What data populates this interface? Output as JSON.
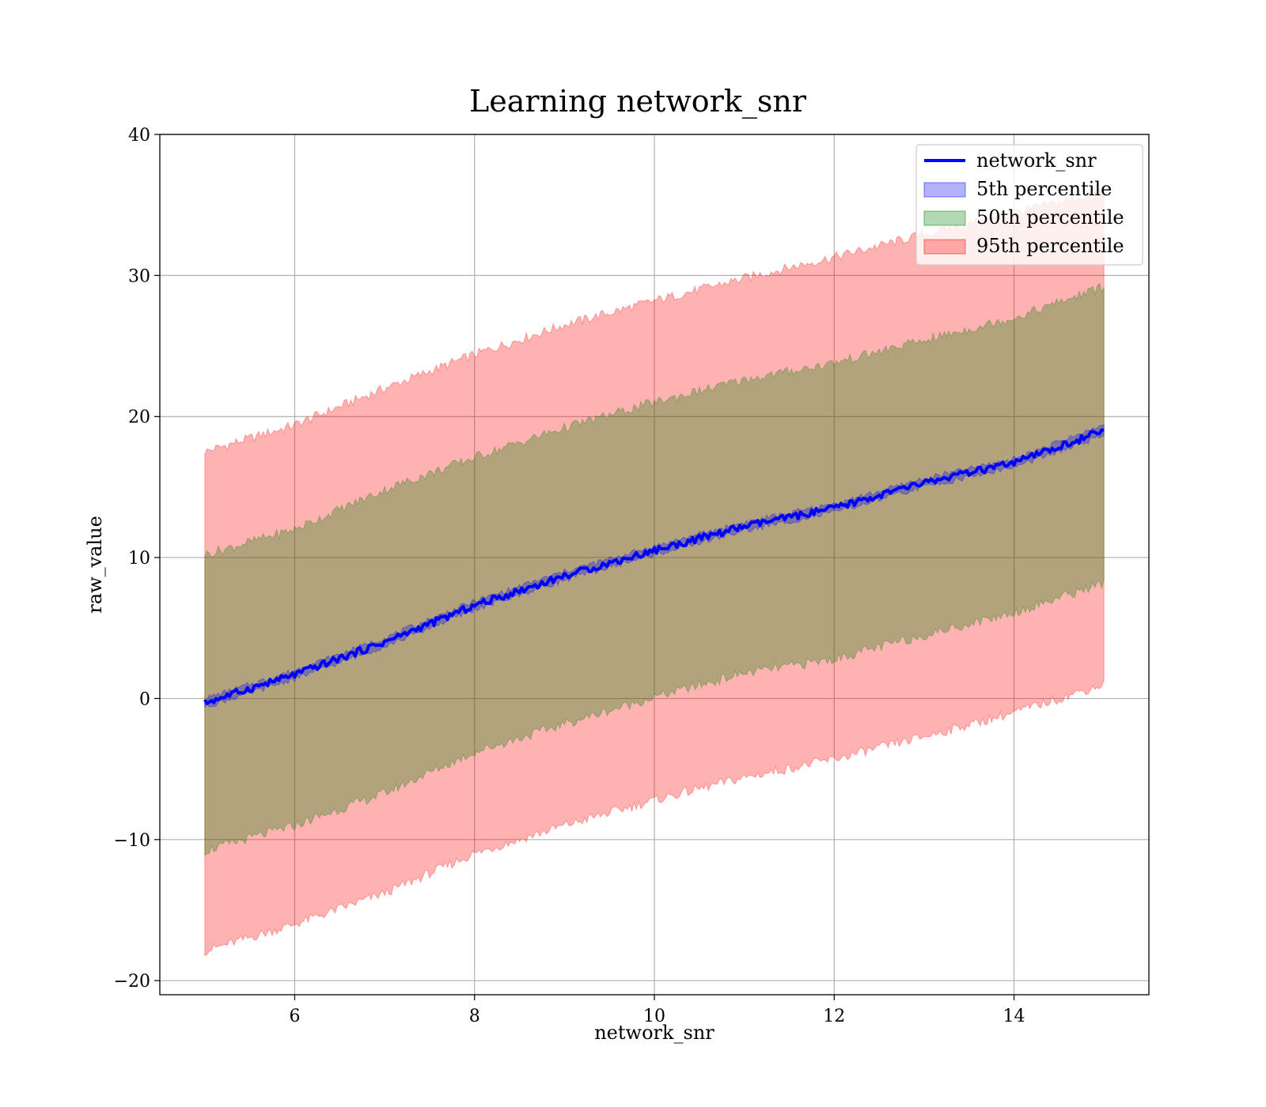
{
  "chart_data": {
    "type": "line",
    "title": "Learning network_snr",
    "xlabel": "network_snr",
    "ylabel": "raw_value",
    "xlim": [
      4.5,
      15.5
    ],
    "ylim": [
      -21,
      40
    ],
    "xticks": [
      6,
      8,
      10,
      12,
      14
    ],
    "xtick_labels": [
      "6",
      "8",
      "10",
      "12",
      "14"
    ],
    "yticks": [
      -20,
      -10,
      0,
      10,
      20,
      30,
      40
    ],
    "ytick_labels": [
      "−20",
      "−10",
      "0",
      "10",
      "20",
      "30",
      "40"
    ],
    "grid": true,
    "legend_position": "top-right",
    "x": [
      5,
      6,
      7,
      8,
      9,
      10,
      11,
      12,
      13,
      14,
      15
    ],
    "series": [
      {
        "name": "network_snr",
        "kind": "line",
        "color": "#0000ff",
        "values": [
          -0.3,
          1.7,
          4.0,
          6.6,
          8.7,
          10.5,
          12.2,
          13.5,
          15.3,
          16.7,
          19.0
        ]
      },
      {
        "name": "5th percentile",
        "kind": "band",
        "color": "#0000ff",
        "opacity": 0.3,
        "lower": [
          -0.6,
          1.4,
          3.7,
          6.3,
          8.4,
          10.2,
          11.9,
          13.2,
          15.0,
          16.4,
          18.6
        ],
        "upper": [
          0.0,
          2.0,
          4.3,
          6.9,
          9.0,
          10.8,
          12.5,
          13.8,
          15.6,
          17.0,
          19.4
        ]
      },
      {
        "name": "50th percentile",
        "kind": "band",
        "color": "#008000",
        "opacity": 0.3,
        "lower": [
          -10.8,
          -9.0,
          -6.7,
          -3.8,
          -1.8,
          0.1,
          1.8,
          2.8,
          4.5,
          6.1,
          8.2
        ],
        "upper": [
          10.2,
          12.0,
          14.8,
          17.1,
          19.2,
          21.0,
          22.6,
          23.8,
          25.4,
          27.0,
          29.2
        ]
      },
      {
        "name": "95th percentile",
        "kind": "band",
        "color": "#ff0000",
        "opacity": 0.3,
        "lower": [
          -17.9,
          -16.0,
          -13.8,
          -11.0,
          -9.0,
          -7.2,
          -5.6,
          -4.3,
          -2.7,
          -1.0,
          1.0
        ],
        "upper": [
          17.5,
          19.4,
          22.0,
          24.4,
          26.5,
          28.2,
          29.8,
          31.3,
          32.9,
          34.4,
          36.0
        ]
      }
    ]
  }
}
